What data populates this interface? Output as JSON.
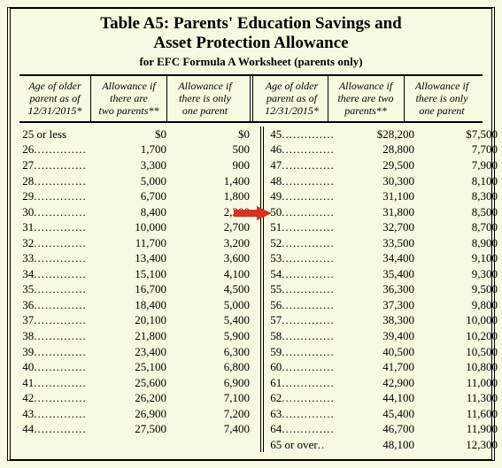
{
  "title_line1": "Table A5:  Parents' Education Savings and",
  "title_line2": "Asset Protection Allowance",
  "subtitle": "for EFC Formula A Worksheet (parents only)",
  "head": {
    "age_l1": "Age of older",
    "age_l2": "parent as of",
    "age_l3": "12/31/2015*",
    "two_l1": "Allowance if",
    "two_l2": "there are",
    "two_l3": "two parents**",
    "two_l2b": "there are two",
    "two_l3b": "parents**",
    "one_l1": "Allowance if",
    "one_l2": "there is only",
    "one_l3": "one parent"
  },
  "left": [
    {
      "age": "25 or less",
      "two": "$0",
      "one": "$0"
    },
    {
      "age": "26",
      "two": "1,700",
      "one": "500"
    },
    {
      "age": "27",
      "two": "3,300",
      "one": "900"
    },
    {
      "age": "28",
      "two": "5,000",
      "one": "1,400"
    },
    {
      "age": "29",
      "two": "6,700",
      "one": "1,800"
    },
    {
      "age": "30",
      "two": "8,400",
      "one": "2,300"
    },
    {
      "age": "31",
      "two": "10,000",
      "one": "2,700"
    },
    {
      "age": "32",
      "two": "11,700",
      "one": "3,200"
    },
    {
      "age": "33",
      "two": "13,400",
      "one": "3,600"
    },
    {
      "age": "34",
      "two": "15,100",
      "one": "4,100"
    },
    {
      "age": "35",
      "two": "16,700",
      "one": "4,500"
    },
    {
      "age": "36",
      "two": "18,400",
      "one": "5,000"
    },
    {
      "age": "37",
      "two": "20,100",
      "one": "5,400"
    },
    {
      "age": "38",
      "two": "21,800",
      "one": "5,900"
    },
    {
      "age": "39",
      "two": "23,400",
      "one": "6,300"
    },
    {
      "age": "40",
      "two": "25,100",
      "one": "6,800"
    },
    {
      "age": "41",
      "two": "25,600",
      "one": "6,900"
    },
    {
      "age": "42",
      "two": "26,200",
      "one": "7,100"
    },
    {
      "age": "43",
      "two": "26,900",
      "one": "7,200"
    },
    {
      "age": "44",
      "two": "27,500",
      "one": "7,400"
    }
  ],
  "right": [
    {
      "age": "45",
      "two": "$28,200",
      "one": "$7,500"
    },
    {
      "age": "46",
      "two": "28,800",
      "one": "7,700"
    },
    {
      "age": "47",
      "two": "29,500",
      "one": "7,900"
    },
    {
      "age": "48",
      "two": "30,300",
      "one": "8,100"
    },
    {
      "age": "49",
      "two": "31,100",
      "one": "8,300"
    },
    {
      "age": "50",
      "two": "31,800",
      "one": "8,500"
    },
    {
      "age": "51",
      "two": "32,700",
      "one": "8,700"
    },
    {
      "age": "52",
      "two": "33,500",
      "one": "8,900"
    },
    {
      "age": "53",
      "two": "34,400",
      "one": "9,100"
    },
    {
      "age": "54",
      "two": "35,400",
      "one": "9,300"
    },
    {
      "age": "55",
      "two": "36,300",
      "one": "9,500"
    },
    {
      "age": "56",
      "two": "37,300",
      "one": "9,800"
    },
    {
      "age": "57",
      "two": "38,300",
      "one": "10,000"
    },
    {
      "age": "58",
      "two": "39,400",
      "one": "10,200"
    },
    {
      "age": "59",
      "two": "40,500",
      "one": "10,500"
    },
    {
      "age": "60",
      "two": "41,700",
      "one": "10,800"
    },
    {
      "age": "61",
      "two": "42,900",
      "one": "11,000"
    },
    {
      "age": "62",
      "two": "44,100",
      "one": "11,300"
    },
    {
      "age": "63",
      "two": "45,400",
      "one": "11,600"
    },
    {
      "age": "64",
      "two": "46,700",
      "one": "11,900"
    },
    {
      "age": "65 or over",
      "two": "48,100",
      "one": "12,300"
    }
  ],
  "arrow": {
    "color": "#d3341f",
    "row_index": 5
  }
}
